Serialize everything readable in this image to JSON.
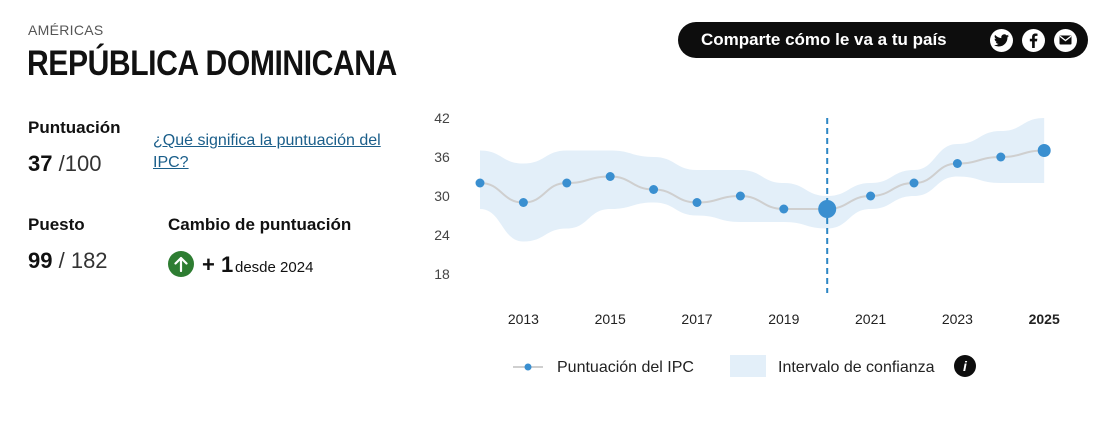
{
  "header": {
    "region": "AMÉRICAS",
    "country": "REPÚBLICA DOMINICANA",
    "share_label": "Comparte cómo le va a tu país",
    "share_icons": [
      "twitter-icon",
      "facebook-icon",
      "email-icon"
    ]
  },
  "score": {
    "label": "Puntuación",
    "value": "37",
    "max": "/100",
    "link": "¿Qué significa la puntuación del IPC?"
  },
  "rank": {
    "label": "Puesto",
    "value": "99",
    "total": "/ 182"
  },
  "change": {
    "label": "Cambio de puntuación",
    "value": "+ 1",
    "since": "desde 2024"
  },
  "colors": {
    "point": "#3a8fd0",
    "line": "#cfcfcf",
    "band": "#e3eff9",
    "dashed": "#2d86c4",
    "up": "#2e7d32"
  },
  "chart_data": {
    "type": "line",
    "title": "",
    "x": [
      2012,
      2013,
      2014,
      2015,
      2016,
      2017,
      2018,
      2019,
      2020,
      2021,
      2022,
      2023,
      2024,
      2025
    ],
    "values": [
      32,
      29,
      32,
      33,
      31,
      29,
      30,
      28,
      28,
      30,
      32,
      35,
      36,
      37
    ],
    "ci_lower": [
      28,
      23,
      25,
      28,
      29,
      27,
      26,
      26,
      25,
      28,
      30,
      33,
      32,
      32
    ],
    "ci_upper": [
      37,
      35,
      37,
      37,
      36,
      34,
      34,
      32,
      30,
      32,
      34,
      38,
      40,
      42
    ],
    "highlight_year": 2020,
    "x_tick_labels": [
      "2013",
      "2015",
      "2017",
      "2019",
      "2021",
      "2023",
      "2025"
    ],
    "y_ticks": [
      "42",
      "36",
      "30",
      "24",
      "18"
    ],
    "ylim": [
      18,
      42
    ],
    "legend": {
      "series": "Puntuación del IPC",
      "band": "Intervalo de confianza",
      "info": "i"
    }
  }
}
